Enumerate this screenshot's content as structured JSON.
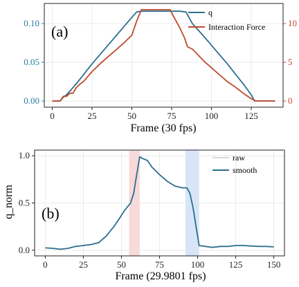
{
  "chart_data": [
    {
      "type": "line",
      "panel_label": "(a)",
      "xlabel": "Frame (30 fps)",
      "ylabel": "",
      "xlim": [
        -5,
        145
      ],
      "ylim": [
        -0.008,
        0.126
      ],
      "y2lim": [
        -0.8,
        12.6
      ],
      "xticks": [
        "0",
        "25",
        "50",
        "75",
        "100",
        "125"
      ],
      "yticks": [
        "0.00",
        "0.05",
        "0.10"
      ],
      "y2ticks": [
        "0",
        "5",
        "10"
      ],
      "grid": true,
      "legend_position": "top-right",
      "colors": {
        "q": "#2a6f8f",
        "force": "#c0492b",
        "left_axis": "#2a7fa0",
        "right_axis": "#c0492b"
      },
      "series": [
        {
          "name": "q",
          "axis": "left",
          "x": [
            0,
            5,
            7,
            9,
            12,
            15,
            20,
            25,
            30,
            35,
            40,
            45,
            50,
            53,
            56,
            60,
            70,
            80,
            84,
            88,
            95,
            100,
            105,
            110,
            115,
            120,
            125,
            127,
            130,
            140
          ],
          "y": [
            0.0,
            0.0,
            0.005,
            0.008,
            0.015,
            0.022,
            0.035,
            0.048,
            0.06,
            0.072,
            0.084,
            0.096,
            0.108,
            0.115,
            0.116,
            0.116,
            0.116,
            0.116,
            0.115,
            0.1,
            0.084,
            0.072,
            0.06,
            0.048,
            0.035,
            0.022,
            0.008,
            0.0,
            0.0,
            0.0
          ]
        },
        {
          "name": "Interaction Force",
          "axis": "right",
          "x": [
            0,
            5,
            7,
            9,
            11,
            13,
            15,
            17,
            20,
            25,
            30,
            35,
            40,
            45,
            50,
            53,
            56,
            58,
            62,
            68,
            74,
            76,
            80,
            83,
            85,
            88,
            90,
            95,
            100,
            105,
            110,
            115,
            120,
            125,
            128,
            130,
            140
          ],
          "y": [
            0,
            0,
            0.6,
            0.6,
            1.0,
            1.0,
            1.7,
            2.1,
            2.6,
            3.8,
            4.8,
            5.7,
            6.6,
            7.5,
            8.5,
            10.3,
            11.8,
            11.8,
            11.8,
            11.8,
            11.8,
            11.0,
            9.5,
            8.2,
            7.0,
            6.7,
            6.3,
            5.2,
            4.3,
            3.4,
            2.5,
            1.8,
            1.0,
            0.3,
            0,
            0,
            0
          ]
        }
      ]
    },
    {
      "type": "line",
      "panel_label": "(b)",
      "xlabel": "Frame (29.9801 fps)",
      "ylabel": "q_norm",
      "xlim": [
        -7,
        157
      ],
      "ylim": [
        -0.06,
        1.06
      ],
      "xticks": [
        "0",
        "25",
        "50",
        "75",
        "100",
        "125",
        "150"
      ],
      "yticks": [
        "0.0",
        "0.5",
        "1.0"
      ],
      "grid": true,
      "legend_position": "top-right",
      "highlight_spans": [
        {
          "x0": 55,
          "x1": 62,
          "color": "#f4cccc"
        },
        {
          "x0": 92,
          "x1": 101,
          "color": "#c9dcf5"
        }
      ],
      "colors": {
        "raw": "#cccccc",
        "smooth": "#2a6f8f"
      },
      "series": [
        {
          "name": "raw",
          "x": [
            0,
            5,
            10,
            15,
            20,
            25,
            30,
            35,
            40,
            45,
            48,
            52,
            55,
            56,
            58,
            60,
            62,
            64,
            67,
            70,
            75,
            80,
            85,
            90,
            93,
            95,
            97,
            99,
            101,
            105,
            110,
            115,
            120,
            125,
            130,
            135,
            140,
            145,
            150
          ],
          "y": [
            0.025,
            0.02,
            0.01,
            0.02,
            0.04,
            0.05,
            0.06,
            0.08,
            0.15,
            0.25,
            0.32,
            0.42,
            0.48,
            0.5,
            0.6,
            0.8,
            0.99,
            0.97,
            0.95,
            0.88,
            0.8,
            0.73,
            0.68,
            0.66,
            0.66,
            0.6,
            0.45,
            0.25,
            0.05,
            0.04,
            0.03,
            0.04,
            0.04,
            0.05,
            0.05,
            0.045,
            0.04,
            0.04,
            0.035
          ]
        },
        {
          "name": "smooth",
          "x": [
            0,
            5,
            10,
            15,
            20,
            25,
            30,
            35,
            40,
            45,
            48,
            52,
            55,
            56,
            58,
            60,
            62,
            64,
            67,
            70,
            75,
            80,
            85,
            90,
            93,
            95,
            97,
            99,
            101,
            105,
            110,
            115,
            120,
            125,
            130,
            135,
            140,
            145,
            150
          ],
          "y": [
            0.025,
            0.02,
            0.01,
            0.02,
            0.04,
            0.05,
            0.06,
            0.08,
            0.15,
            0.25,
            0.32,
            0.42,
            0.48,
            0.5,
            0.6,
            0.8,
            0.99,
            0.97,
            0.95,
            0.88,
            0.8,
            0.73,
            0.68,
            0.66,
            0.66,
            0.6,
            0.45,
            0.25,
            0.05,
            0.04,
            0.03,
            0.04,
            0.04,
            0.05,
            0.05,
            0.045,
            0.04,
            0.04,
            0.035
          ]
        }
      ]
    }
  ]
}
